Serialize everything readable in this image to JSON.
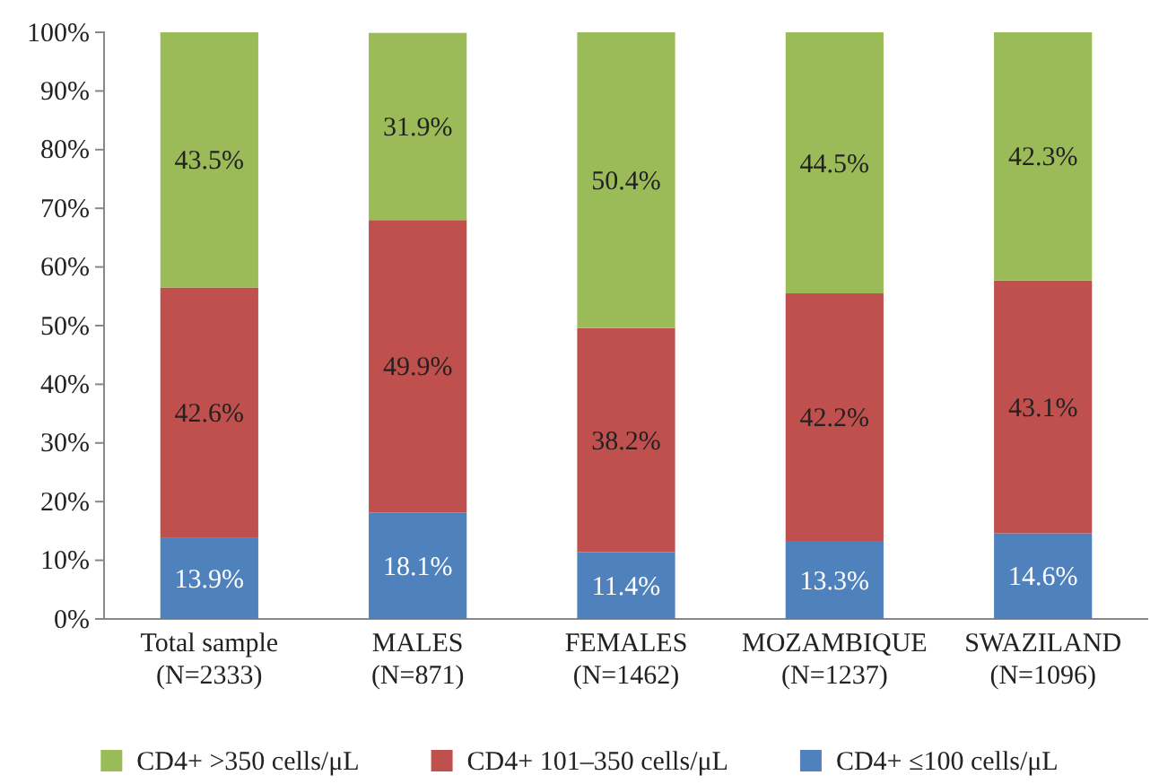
{
  "chart_data": {
    "type": "bar",
    "stacked": true,
    "categories": [
      "Total sample\n(N=2333)",
      "MALES\n(N=871)",
      "FEMALES\n(N=1462)",
      "MOZAMBIQUE\n(N=1237)",
      "SWAZILAND\n(N=1096)"
    ],
    "series": [
      {
        "name": "CD4+ ≤100 cells/μL",
        "color": "#4f81bd",
        "values": [
          13.9,
          18.1,
          11.4,
          13.3,
          14.6
        ],
        "value_labels": [
          "13.9%",
          "18.1%",
          "11.4%",
          "13.3%",
          "14.6%"
        ]
      },
      {
        "name": "CD4+ 101–350 cells/μL",
        "color": "#c0504d",
        "values": [
          42.6,
          49.9,
          38.2,
          42.2,
          43.1
        ],
        "value_labels": [
          "42.6%",
          "49.9%",
          "38.2%",
          "42.2%",
          "43.1%"
        ]
      },
      {
        "name": "CD4+ >350 cells/μL",
        "color": "#9bbb59",
        "values": [
          43.5,
          31.9,
          50.4,
          44.5,
          42.3
        ],
        "value_labels": [
          "43.5%",
          "31.9%",
          "50.4%",
          "44.5%",
          "42.3%"
        ]
      }
    ],
    "ylim": [
      0,
      100
    ],
    "yticks": [
      {
        "value": 0,
        "label": "0%"
      },
      {
        "value": 10,
        "label": "10%"
      },
      {
        "value": 20,
        "label": "20%"
      },
      {
        "value": 30,
        "label": "30%"
      },
      {
        "value": 40,
        "label": "40%"
      },
      {
        "value": 50,
        "label": "50%"
      },
      {
        "value": 60,
        "label": "60%"
      },
      {
        "value": 70,
        "label": "70%"
      },
      {
        "value": 80,
        "label": "80%"
      },
      {
        "value": 90,
        "label": "90%"
      },
      {
        "value": 100,
        "label": "100%"
      }
    ],
    "legend": "bottom"
  }
}
